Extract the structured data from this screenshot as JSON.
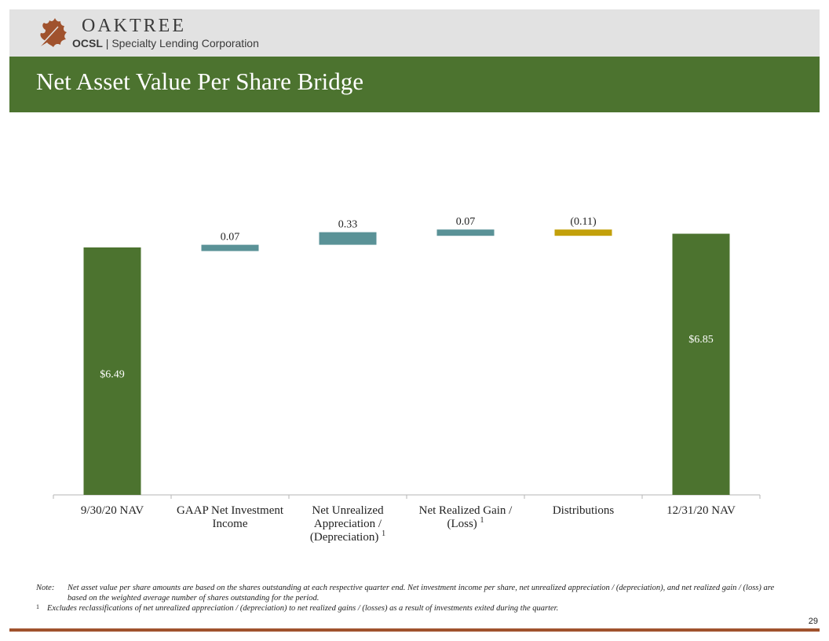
{
  "logo": {
    "name": "OAKTREE",
    "ticker": "OCSL",
    "separator": "|",
    "company": "Specialty Lending Corporation"
  },
  "header": {
    "title": "Net Asset Value Per Share Bridge"
  },
  "colors": {
    "green": "#4c732f",
    "teal": "#5a9297",
    "gold": "#c3a00b",
    "brand_leaf": "#a0522d"
  },
  "chart_data": {
    "type": "waterfall",
    "title": "Net Asset Value Per Share Bridge",
    "ylim": [
      0,
      7.2
    ],
    "categories": [
      [
        "9/30/20 NAV"
      ],
      [
        "GAAP Net Investment",
        "Income"
      ],
      [
        "Net Unrealized",
        "Appreciation /",
        "(Depreciation) "
      ],
      [
        "Net Realized Gain /",
        "(Loss) "
      ],
      [
        "Distributions"
      ],
      [
        "12/31/20 NAV"
      ]
    ],
    "category_footnotes": [
      "",
      "",
      "1",
      "1",
      "",
      ""
    ],
    "steps": [
      {
        "kind": "total",
        "value": 6.49,
        "label": "$6.49"
      },
      {
        "kind": "delta",
        "value": 0.07,
        "label": "0.07"
      },
      {
        "kind": "delta",
        "value": 0.33,
        "label": "0.33"
      },
      {
        "kind": "delta",
        "value": 0.07,
        "label": "0.07"
      },
      {
        "kind": "delta",
        "value": -0.11,
        "label": "(0.11)"
      },
      {
        "kind": "total",
        "value": 6.85,
        "label": "$6.85"
      }
    ]
  },
  "notes": {
    "note_label": "Note:",
    "note_text": "Net asset value per share amounts are based on the shares outstanding at each respective quarter end. Net investment income per share, net unrealized appreciation / (depreciation), and net realized gain / (loss) are based on the weighted average number of shares outstanding for the period.",
    "footnote_marker": "1",
    "footnote_text": "Excludes reclassifications of net unrealized appreciation / (depreciation) to net realized gains / (losses) as a result of investments exited during the quarter."
  },
  "page_number": "29"
}
